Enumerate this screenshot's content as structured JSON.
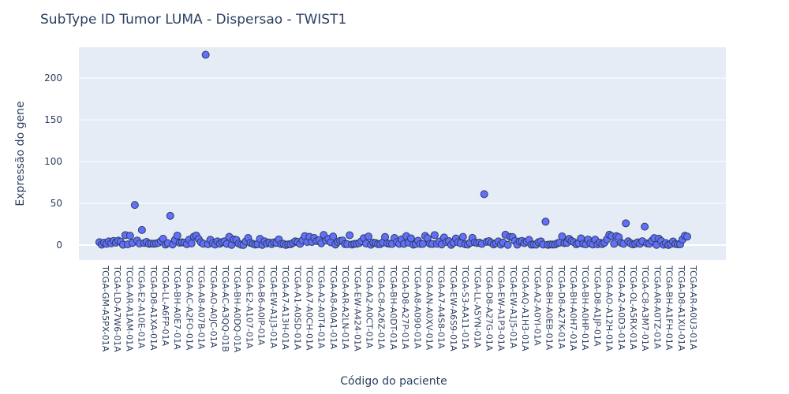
{
  "chart_data": {
    "type": "scatter",
    "title": "SubType ID Tumor LUMA - Dispersao - TWIST1",
    "xlabel": "Código do paciente",
    "ylabel": "Expressão do gene",
    "ylim": [
      -18,
      237
    ],
    "yticks": [
      0,
      50,
      100,
      150,
      200
    ],
    "grid": true,
    "point_count": 250,
    "marker_color": "#636efa",
    "marker_outline": "#2a3f5f",
    "plot_bg": "#e5ecf6",
    "x_tick_labels": [
      "TCGA-GM-A5PX-01A",
      "TCGA-LD-A7W6-01A",
      "TCGA-AR-A1AM-01A",
      "TCGA-E2-A10E-01A",
      "TCGA-D8-A1XA-01A",
      "TCGA-LL-A6FP-01A",
      "TCGA-BH-A0E7-01A",
      "TCGA-AC-A2FO-01A",
      "TCGA-A8-A07B-01A",
      "TCGA-AO-A0JC-01A",
      "TCGA-AC-A3QQ-01B",
      "TCGA-BH-A0DQ-01A",
      "TCGA-E2-A107-01A",
      "TCGA-B6-A0IP-01A",
      "TCGA-EW-A1J3-01A",
      "TCGA-A7-A13H-01A",
      "TCGA-A1-A0SD-01A",
      "TCGA-A7-A0CH-01A",
      "TCGA-A2-A0T4-01A",
      "TCGA-A8-A0A1-01A",
      "TCGA-AR-A2LN-01A",
      "TCGA-EW-A424-01A",
      "TCGA-A2-A0CT-01A",
      "TCGA-C8-A26Z-01A",
      "TCGA-BH-A0DT-01A",
      "TCGA-D8-A27P-01A",
      "TCGA-A8-A090-01A",
      "TCGA-AN-A0XV-01A",
      "TCGA-A7-A4S8-01A",
      "TCGA-EW-A6S9-01A",
      "TCGA-S3-AA11-01A",
      "TCGA-LL-A5YN-01A",
      "TCGA-D8-A27G-01A",
      "TCGA-EW-A1P3-01A",
      "TCGA-EW-A1J5-01A",
      "TCGA-AQ-A1H3-01A",
      "TCGA-A2-A0YI-01A",
      "TCGA-BH-A0EB-01A",
      "TCGA-D8-A27K-01A",
      "TCGA-BH-A0H7-01A",
      "TCGA-BH-A0HP-01A",
      "TCGA-D8-A1JP-01A",
      "TCGA-AO-A12H-01A",
      "TCGA-A2-A0D3-01A",
      "TCGA-OL-A5RX-01A",
      "TCGA-C8-A3M7-01A",
      "TCGA-AR-A0TZ-01A",
      "TCGA-BH-A1FH-01A",
      "TCGA-D8-A1XU-01A",
      "TCGA-AR-A0U3-01A"
    ],
    "outliers": [
      {
        "index": 48,
        "value": 48
      },
      {
        "index": 57,
        "value": 18
      },
      {
        "index": 96,
        "value": 35
      },
      {
        "index": 144,
        "value": 228
      },
      {
        "index": 517,
        "value": 61
      },
      {
        "index": 600,
        "value": 28
      },
      {
        "index": 706,
        "value": 26
      },
      {
        "index": 733,
        "value": 22
      }
    ],
    "baseline_range": [
      0,
      16
    ]
  }
}
